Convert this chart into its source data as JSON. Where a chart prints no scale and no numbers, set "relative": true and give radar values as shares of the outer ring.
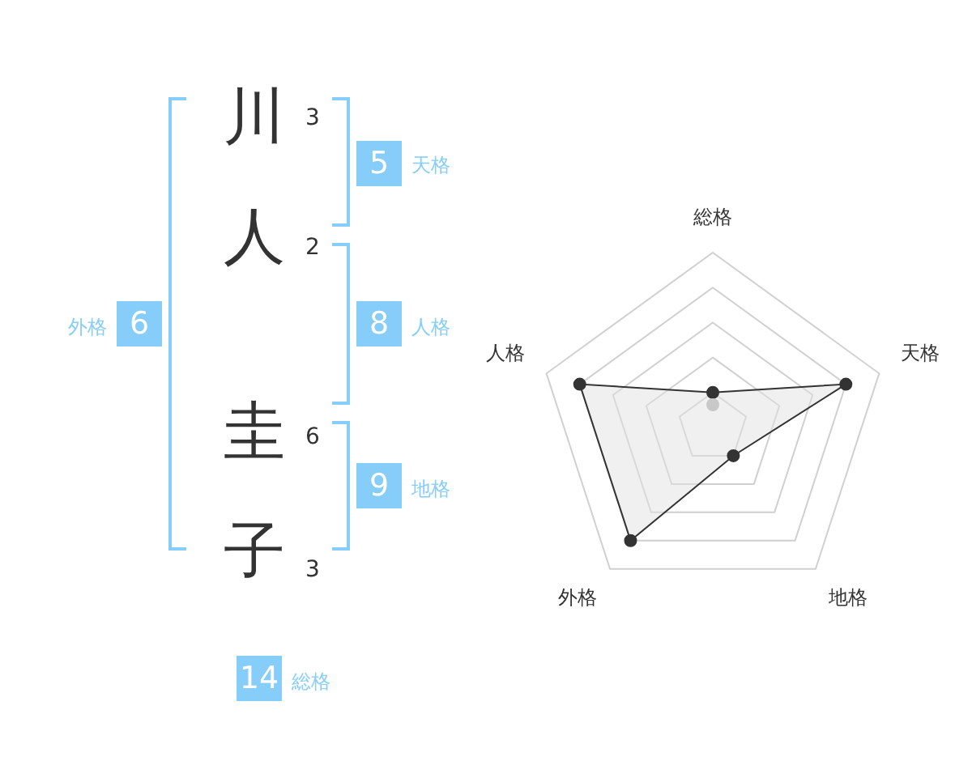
{
  "chart_data": [
    {
      "type": "other",
      "annotations": [
        "川",
        "3",
        "人",
        "2",
        "圭",
        "6",
        "子",
        "3",
        "5",
        "天格",
        "8",
        "人格",
        "9",
        "地格",
        "6",
        "外格",
        "14",
        "総格"
      ]
    },
    {
      "type": "radar",
      "relative": true,
      "categories": [
        "総格",
        "天格",
        "地格",
        "外格",
        "人格"
      ],
      "legend": false,
      "marker": "circle",
      "grid": true,
      "series": [
        {
          "color": "#333333",
          "values": [
            0.2,
            0.8,
            0.2,
            0.8,
            0.8
          ]
        }
      ]
    }
  ]
}
